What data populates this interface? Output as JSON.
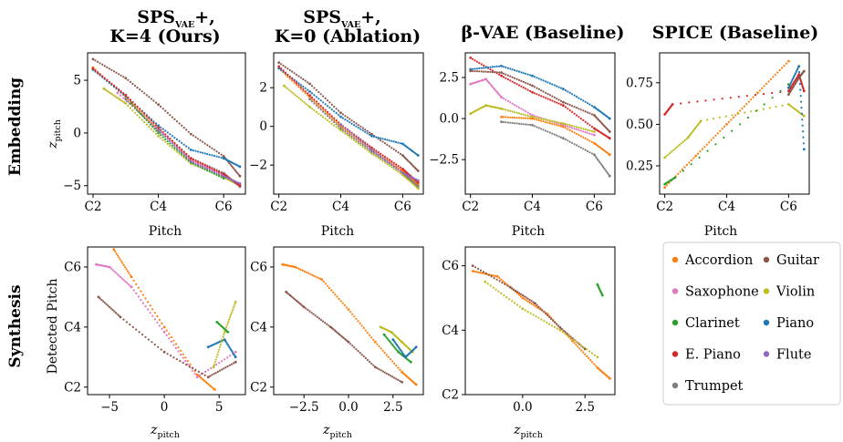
{
  "titles": [
    {
      "main": "SPS",
      "sub": "VAE",
      "suffix": "+,",
      "line2": "K=4 (Ours)"
    },
    {
      "main": "SPS",
      "sub": "VAE",
      "suffix": "+,",
      "line2": "K=0 (Ablation)"
    },
    {
      "main": "β-VAE (Baseline)"
    },
    {
      "main": "SPICE (Baseline)"
    }
  ],
  "row_labels": {
    "top": "Embedding",
    "bottom": "Synthesis"
  },
  "axis_labels": {
    "pitch": "Pitch",
    "z_main": "z",
    "z_sub": "pitch",
    "detected_pitch": "Detected Pitch"
  },
  "colors": {
    "Accordion": "#ff7f0e",
    "Saxophone": "#e377c2",
    "Clarinet": "#2ca02c",
    "E. Piano": "#d62728",
    "Trumpet": "#7f7f7f",
    "Guitar": "#8c564b",
    "Violin": "#bcbd22",
    "Piano": "#1f77b4",
    "Flute": "#9467bd"
  },
  "legend": {
    "entries": [
      "Accordion",
      "Saxophone",
      "Clarinet",
      "E. Piano",
      "Trumpet",
      "Guitar",
      "Violin",
      "Piano",
      "Flute"
    ]
  },
  "chart_data": [
    {
      "panel": "embedding-sps-k4",
      "type": "scatter",
      "xlabel": "Pitch",
      "ylabel": "z_pitch",
      "x_ticks": [
        "C2",
        "C4",
        "C6"
      ],
      "x_tick_values": [
        36,
        60,
        84
      ],
      "xlim": [
        34,
        92
      ],
      "y_ticks": [
        5,
        0,
        -5
      ],
      "ylim": [
        -5.8,
        7.6
      ],
      "series": [
        {
          "name": "Accordion",
          "x": [
            36,
            48,
            60,
            72,
            84,
            90
          ],
          "y": [
            6.2,
            3.4,
            0.3,
            -2.5,
            -4.0,
            -4.9
          ]
        },
        {
          "name": "Guitar",
          "x": [
            36,
            48,
            60,
            72,
            84,
            90
          ],
          "y": [
            7.0,
            5.2,
            2.7,
            -0.1,
            -2.2,
            -4.1
          ]
        },
        {
          "name": "Piano",
          "x": [
            36,
            48,
            60,
            72,
            84,
            90
          ],
          "y": [
            6.0,
            3.5,
            0.7,
            -1.6,
            -2.4,
            -3.2
          ]
        },
        {
          "name": "Violin",
          "x": [
            40,
            48,
            60,
            72,
            84,
            90
          ],
          "y": [
            4.2,
            2.8,
            -0.3,
            -2.9,
            -4.2,
            -5.0
          ]
        },
        {
          "name": "Trumpet",
          "x": [
            48,
            60,
            72,
            84,
            90
          ],
          "y": [
            3.2,
            0.2,
            -2.4,
            -3.8,
            -5.1
          ]
        },
        {
          "name": "Saxophone",
          "x": [
            45,
            60,
            72,
            84
          ],
          "y": [
            3.8,
            0.3,
            -2.6,
            -4.0
          ]
        },
        {
          "name": "Clarinet",
          "x": [
            50,
            60,
            72,
            84
          ],
          "y": [
            2.8,
            0.0,
            -2.8,
            -4.3
          ]
        },
        {
          "name": "E. Piano",
          "x": [
            36,
            48,
            60,
            72,
            84,
            90
          ],
          "y": [
            6.1,
            3.6,
            0.5,
            -2.4,
            -3.9,
            -5.0
          ]
        },
        {
          "name": "Flute",
          "x": [
            60,
            72,
            84,
            90
          ],
          "y": [
            0.3,
            -2.7,
            -4.1,
            -4.8
          ]
        }
      ]
    },
    {
      "panel": "embedding-sps-k0",
      "type": "scatter",
      "xlabel": "Pitch",
      "ylabel": "",
      "x_ticks": [
        "C2",
        "C4",
        "C6"
      ],
      "x_tick_values": [
        36,
        60,
        84
      ],
      "xlim": [
        34,
        92
      ],
      "y_ticks": [
        2,
        0,
        -2
      ],
      "ylim": [
        -3.5,
        3.8
      ],
      "series": [
        {
          "name": "Accordion",
          "x": [
            36,
            48,
            60,
            72,
            84,
            90
          ],
          "y": [
            3.0,
            1.5,
            0.0,
            -1.2,
            -2.3,
            -3.0
          ]
        },
        {
          "name": "Guitar",
          "x": [
            36,
            48,
            60,
            72,
            84,
            90
          ],
          "y": [
            3.3,
            2.2,
            0.7,
            -0.4,
            -1.5,
            -2.3
          ]
        },
        {
          "name": "Piano",
          "x": [
            36,
            48,
            60,
            72,
            84,
            90
          ],
          "y": [
            3.0,
            1.8,
            0.5,
            -0.5,
            -0.9,
            -1.5
          ]
        },
        {
          "name": "Violin",
          "x": [
            38,
            48,
            60,
            72,
            84,
            90
          ],
          "y": [
            2.1,
            1.0,
            -0.2,
            -1.4,
            -2.5,
            -3.2
          ]
        },
        {
          "name": "Trumpet",
          "x": [
            48,
            60,
            72,
            84,
            90
          ],
          "y": [
            1.4,
            -0.1,
            -1.3,
            -2.4,
            -3.1
          ]
        },
        {
          "name": "E. Piano",
          "x": [
            36,
            48,
            60,
            72,
            84,
            90
          ],
          "y": [
            3.1,
            1.6,
            0.1,
            -1.1,
            -2.2,
            -2.9
          ]
        },
        {
          "name": "Flute",
          "x": [
            60,
            72,
            84,
            90
          ],
          "y": [
            0.1,
            -1.2,
            -2.4,
            -2.8
          ]
        }
      ]
    },
    {
      "panel": "embedding-beta-vae",
      "type": "scatter",
      "xlabel": "Pitch",
      "ylabel": "",
      "x_ticks": [
        "C2",
        "C4",
        "C6"
      ],
      "x_tick_values": [
        36,
        60,
        84
      ],
      "xlim": [
        34,
        92
      ],
      "y_ticks": [
        2.5,
        0.0,
        -2.5
      ],
      "ylim": [
        -4.6,
        4.0
      ],
      "series": [
        {
          "name": "E. Piano",
          "x": [
            36,
            48,
            60,
            72,
            84,
            90
          ],
          "y": [
            3.7,
            2.6,
            1.6,
            0.8,
            -0.6,
            -1.2
          ]
        },
        {
          "name": "Saxophone",
          "x": [
            36,
            42,
            48,
            60,
            72,
            84
          ],
          "y": [
            2.1,
            2.4,
            1.3,
            0.2,
            -0.4,
            -1.0
          ]
        },
        {
          "name": "Violin",
          "x": [
            36,
            42,
            48,
            60,
            72,
            84
          ],
          "y": [
            0.3,
            0.8,
            0.6,
            0.1,
            -0.3,
            -0.8
          ]
        },
        {
          "name": "Piano",
          "x": [
            36,
            48,
            60,
            72,
            84,
            90
          ],
          "y": [
            3.0,
            3.2,
            2.6,
            1.8,
            0.7,
            0.0
          ]
        },
        {
          "name": "Guitar",
          "x": [
            36,
            48,
            60,
            72,
            84,
            90
          ],
          "y": [
            2.9,
            2.8,
            2.0,
            1.0,
            0.2,
            -0.8
          ]
        },
        {
          "name": "Trumpet",
          "x": [
            48,
            60,
            72,
            84,
            90
          ],
          "y": [
            -0.2,
            -0.4,
            -1.2,
            -2.2,
            -3.5
          ]
        },
        {
          "name": "Accordion",
          "x": [
            48,
            60,
            72,
            84,
            90
          ],
          "y": [
            0.1,
            0.0,
            -0.5,
            -1.5,
            -2.2
          ]
        }
      ]
    },
    {
      "panel": "embedding-spice",
      "type": "scatter",
      "xlabel": "Pitch",
      "ylabel": "",
      "x_ticks": [
        "C2",
        "C4",
        "C6"
      ],
      "x_tick_values": [
        36,
        60,
        84
      ],
      "xlim": [
        34,
        92
      ],
      "y_ticks": [
        0.75,
        0.5,
        0.25
      ],
      "ylim": [
        0.08,
        0.93
      ],
      "series": [
        {
          "name": "Accordion",
          "x": [
            36,
            48,
            60,
            72,
            84
          ],
          "y": [
            0.12,
            0.31,
            0.5,
            0.69,
            0.88
          ]
        },
        {
          "name": "Violin",
          "x": [
            36,
            45,
            50,
            84,
            90
          ],
          "y": [
            0.3,
            0.42,
            0.52,
            0.62,
            0.55
          ]
        },
        {
          "name": "E. Piano",
          "x": [
            36,
            39,
            84,
            88,
            90
          ],
          "y": [
            0.56,
            0.62,
            0.7,
            0.8,
            0.7
          ]
        },
        {
          "name": "Piano",
          "x": [
            84,
            88,
            90
          ],
          "y": [
            0.72,
            0.85,
            0.35
          ]
        },
        {
          "name": "Guitar",
          "x": [
            84,
            88,
            90
          ],
          "y": [
            0.68,
            0.78,
            0.82
          ]
        },
        {
          "name": "Clarinet",
          "x": [
            36,
            40,
            84
          ],
          "y": [
            0.14,
            0.18,
            0.74
          ]
        }
      ]
    },
    {
      "panel": "synthesis-sps-k4",
      "type": "scatter",
      "xlabel": "z_pitch",
      "ylabel": "Detected Pitch",
      "x_ticks": [
        "−5",
        "0",
        "5"
      ],
      "x_tick_values": [
        -5,
        0,
        5
      ],
      "xlim": [
        -7.0,
        7.4
      ],
      "y_ticks": [
        "C6",
        "C4",
        "C2"
      ],
      "y_tick_values": [
        84,
        60,
        36
      ],
      "ylim": [
        33,
        92
      ],
      "series": [
        {
          "name": "Accordion",
          "x": [
            -4.6,
            -3.0,
            0.0,
            3.0,
            4.6
          ],
          "y": [
            91,
            80,
            60,
            41,
            35
          ]
        },
        {
          "name": "Saxophone",
          "x": [
            -6.2,
            -5.0,
            -3.0,
            0.0,
            3.0,
            6.5
          ],
          "y": [
            85,
            84,
            76,
            58,
            40,
            50
          ]
        },
        {
          "name": "Guitar",
          "x": [
            -6.0,
            -4.0,
            0.0,
            4.0,
            6.5
          ],
          "y": [
            72,
            64,
            50,
            40,
            46
          ]
        },
        {
          "name": "Piano",
          "x": [
            4.0,
            5.5,
            6.5
          ],
          "y": [
            52,
            55,
            48
          ]
        },
        {
          "name": "Violin",
          "x": [
            4.5,
            5.5,
            6.5
          ],
          "y": [
            44,
            58,
            70
          ]
        },
        {
          "name": "Clarinet",
          "x": [
            4.8,
            5.8
          ],
          "y": [
            62,
            58
          ]
        }
      ]
    },
    {
      "panel": "synthesis-sps-k0",
      "type": "scatter",
      "xlabel": "z_pitch",
      "ylabel": "",
      "x_ticks": [
        "−2.5",
        "0.0",
        "2.5"
      ],
      "x_tick_values": [
        -2.5,
        0,
        2.5
      ],
      "xlim": [
        -4.2,
        4.2
      ],
      "y_ticks": [
        "C6",
        "C4",
        "C2"
      ],
      "y_tick_values": [
        84,
        60,
        36
      ],
      "ylim": [
        33,
        92
      ],
      "series": [
        {
          "name": "Accordion",
          "x": [
            -3.7,
            -3.0,
            -1.5,
            0.0,
            1.5,
            3.0,
            3.8
          ],
          "y": [
            85,
            84,
            79,
            67,
            54,
            42,
            37
          ]
        },
        {
          "name": "Guitar",
          "x": [
            -3.5,
            -2.5,
            -1.0,
            0.0,
            1.5,
            3.0
          ],
          "y": [
            74,
            68,
            60,
            54,
            44,
            38
          ]
        },
        {
          "name": "Violin",
          "x": [
            1.8,
            2.4,
            3.0,
            3.6
          ],
          "y": [
            60,
            58,
            54,
            50
          ]
        },
        {
          "name": "Clarinet",
          "x": [
            2.0,
            2.8,
            3.5
          ],
          "y": [
            57,
            50,
            46
          ]
        },
        {
          "name": "Piano",
          "x": [
            2.5,
            3.2,
            3.8
          ],
          "y": [
            55,
            48,
            52
          ]
        }
      ]
    },
    {
      "panel": "synthesis-beta-vae",
      "type": "scatter",
      "xlabel": "z_pitch",
      "ylabel": "",
      "x_ticks": [
        "0.0",
        "2.5"
      ],
      "x_tick_values": [
        0,
        2.5
      ],
      "xlim": [
        -2.3,
        3.7
      ],
      "y_ticks": [
        "C6",
        "C4",
        "C2"
      ],
      "y_tick_values": [
        84,
        60,
        36
      ],
      "ylim": [
        36,
        91
      ],
      "series": [
        {
          "name": "Accordion",
          "x": [
            -2.0,
            -1.0,
            0.0,
            1.0,
            2.0,
            3.0,
            3.5
          ],
          "y": [
            82,
            80,
            72,
            66,
            56,
            46,
            42
          ]
        },
        {
          "name": "Guitar",
          "x": [
            -2.0,
            -0.5,
            0.5,
            1.5,
            2.5
          ],
          "y": [
            84,
            76,
            70,
            61,
            53
          ]
        },
        {
          "name": "Violin",
          "x": [
            -1.5,
            0.0,
            1.5,
            3.0
          ],
          "y": [
            78,
            68,
            60,
            50
          ]
        },
        {
          "name": "Clarinet",
          "x": [
            3.0,
            3.2
          ],
          "y": [
            77,
            73
          ]
        }
      ]
    }
  ]
}
